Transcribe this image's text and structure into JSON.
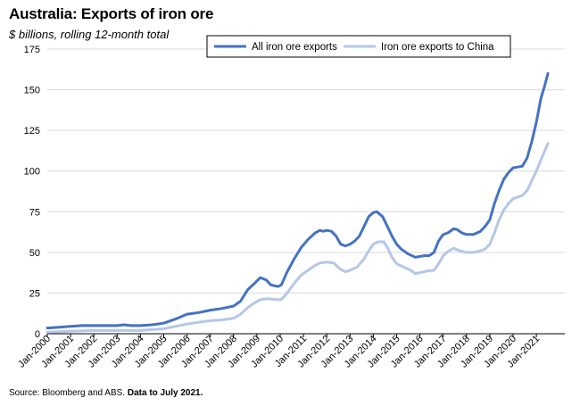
{
  "header": {
    "title": "Australia: Exports of iron ore",
    "subtitle": "$ billions, rolling 12-month total"
  },
  "footer": {
    "source": "Source: Bloomberg and ABS.",
    "note": "Data to July 2021."
  },
  "chart_data": {
    "type": "line",
    "title": "Australia: Exports of iron ore",
    "ylabel": "$ billions, rolling 12-month total",
    "xlabel": "",
    "ylim": [
      0,
      175
    ],
    "yticks": [
      0,
      25,
      50,
      75,
      100,
      125,
      150,
      175
    ],
    "xlim": [
      2000.0,
      2021.6
    ],
    "xticks": [
      {
        "value": 2000,
        "label": "Jan-2000"
      },
      {
        "value": 2001,
        "label": "Jan-2001"
      },
      {
        "value": 2002,
        "label": "Jan-2002"
      },
      {
        "value": 2003,
        "label": "Jan-2003"
      },
      {
        "value": 2004,
        "label": "Jan-2004"
      },
      {
        "value": 2005,
        "label": "Jan-2005"
      },
      {
        "value": 2006,
        "label": "Jan-2006"
      },
      {
        "value": 2007,
        "label": "Jan-2007"
      },
      {
        "value": 2008,
        "label": "Jan-2008"
      },
      {
        "value": 2009,
        "label": "Jan-2009"
      },
      {
        "value": 2010,
        "label": "Jan-2010"
      },
      {
        "value": 2011,
        "label": "Jan-2011"
      },
      {
        "value": 2012,
        "label": "Jan-2012"
      },
      {
        "value": 2013,
        "label": "Jan-2013"
      },
      {
        "value": 2014,
        "label": "Jan-2014"
      },
      {
        "value": 2015,
        "label": "Jan-2015"
      },
      {
        "value": 2016,
        "label": "Jan-2016"
      },
      {
        "value": 2017,
        "label": "Jan-2017"
      },
      {
        "value": 2018,
        "label": "Jan-2018"
      },
      {
        "value": 2019,
        "label": "Jan-2019"
      },
      {
        "value": 2020,
        "label": "Jan-2020"
      },
      {
        "value": 2021,
        "label": "Jan-2021"
      }
    ],
    "grid": "horizontal",
    "legend_position": "top-right",
    "series": [
      {
        "name": "All iron ore exports",
        "color": "#4472c4",
        "points": [
          [
            2000.0,
            3.5
          ],
          [
            2000.5,
            4.0
          ],
          [
            2001.0,
            4.5
          ],
          [
            2001.5,
            5.0
          ],
          [
            2002.0,
            5.0
          ],
          [
            2002.5,
            5.0
          ],
          [
            2003.0,
            5.0
          ],
          [
            2003.3,
            5.5
          ],
          [
            2003.6,
            5.0
          ],
          [
            2004.0,
            5.0
          ],
          [
            2004.5,
            5.5
          ],
          [
            2005.0,
            6.5
          ],
          [
            2005.5,
            9.0
          ],
          [
            2006.0,
            12.0
          ],
          [
            2006.5,
            13.0
          ],
          [
            2007.0,
            14.5
          ],
          [
            2007.5,
            15.5
          ],
          [
            2008.0,
            17.0
          ],
          [
            2008.3,
            20.0
          ],
          [
            2008.6,
            27.0
          ],
          [
            2008.9,
            31.0
          ],
          [
            2009.15,
            34.5
          ],
          [
            2009.4,
            33.0
          ],
          [
            2009.6,
            30.0
          ],
          [
            2009.9,
            29.0
          ],
          [
            2010.05,
            30.0
          ],
          [
            2010.3,
            38.0
          ],
          [
            2010.6,
            46.0
          ],
          [
            2010.9,
            53.0
          ],
          [
            2011.2,
            58.0
          ],
          [
            2011.5,
            62.0
          ],
          [
            2011.7,
            63.5
          ],
          [
            2011.85,
            63.0
          ],
          [
            2012.0,
            63.5
          ],
          [
            2012.2,
            63.0
          ],
          [
            2012.4,
            60.0
          ],
          [
            2012.6,
            55.0
          ],
          [
            2012.8,
            54.0
          ],
          [
            2013.0,
            55.0
          ],
          [
            2013.2,
            57.0
          ],
          [
            2013.4,
            60.0
          ],
          [
            2013.6,
            66.0
          ],
          [
            2013.8,
            72.0
          ],
          [
            2014.0,
            74.5
          ],
          [
            2014.15,
            75.0
          ],
          [
            2014.4,
            72.0
          ],
          [
            2014.6,
            66.0
          ],
          [
            2014.8,
            60.0
          ],
          [
            2015.0,
            55.0
          ],
          [
            2015.2,
            52.0
          ],
          [
            2015.5,
            49.0
          ],
          [
            2015.8,
            47.0
          ],
          [
            2016.0,
            47.5
          ],
          [
            2016.2,
            48.0
          ],
          [
            2016.4,
            48.0
          ],
          [
            2016.6,
            50.0
          ],
          [
            2016.8,
            57.0
          ],
          [
            2017.0,
            61.0
          ],
          [
            2017.2,
            62.0
          ],
          [
            2017.45,
            64.5
          ],
          [
            2017.6,
            64.0
          ],
          [
            2017.8,
            62.0
          ],
          [
            2018.0,
            61.0
          ],
          [
            2018.3,
            61.0
          ],
          [
            2018.6,
            63.0
          ],
          [
            2018.8,
            66.0
          ],
          [
            2019.0,
            70.0
          ],
          [
            2019.2,
            80.0
          ],
          [
            2019.4,
            88.0
          ],
          [
            2019.6,
            95.0
          ],
          [
            2019.8,
            99.0
          ],
          [
            2020.0,
            102.0
          ],
          [
            2020.2,
            102.5
          ],
          [
            2020.4,
            103.0
          ],
          [
            2020.6,
            108.0
          ],
          [
            2020.8,
            118.0
          ],
          [
            2021.0,
            130.0
          ],
          [
            2021.2,
            145.0
          ],
          [
            2021.35,
            152.0
          ],
          [
            2021.5,
            160.0
          ]
        ]
      },
      {
        "name": "Iron ore exports to China",
        "color": "#b4c7e7",
        "points": [
          [
            2000.0,
            1.0
          ],
          [
            2001.0,
            1.5
          ],
          [
            2002.0,
            2.0
          ],
          [
            2003.0,
            2.0
          ],
          [
            2004.0,
            2.0
          ],
          [
            2004.5,
            2.5
          ],
          [
            2005.0,
            3.0
          ],
          [
            2005.5,
            4.5
          ],
          [
            2006.0,
            6.0
          ],
          [
            2006.5,
            7.0
          ],
          [
            2007.0,
            8.0
          ],
          [
            2007.5,
            8.5
          ],
          [
            2008.0,
            9.5
          ],
          [
            2008.3,
            12.0
          ],
          [
            2008.6,
            16.0
          ],
          [
            2008.9,
            19.0
          ],
          [
            2009.15,
            21.0
          ],
          [
            2009.5,
            21.5
          ],
          [
            2009.8,
            21.0
          ],
          [
            2010.05,
            21.0
          ],
          [
            2010.3,
            25.0
          ],
          [
            2010.6,
            31.0
          ],
          [
            2010.9,
            36.0
          ],
          [
            2011.2,
            39.0
          ],
          [
            2011.5,
            42.0
          ],
          [
            2011.7,
            43.5
          ],
          [
            2012.0,
            44.0
          ],
          [
            2012.3,
            43.5
          ],
          [
            2012.55,
            40.0
          ],
          [
            2012.8,
            38.0
          ],
          [
            2013.0,
            39.0
          ],
          [
            2013.3,
            41.0
          ],
          [
            2013.6,
            46.0
          ],
          [
            2013.8,
            51.0
          ],
          [
            2014.0,
            55.0
          ],
          [
            2014.2,
            56.5
          ],
          [
            2014.45,
            56.5
          ],
          [
            2014.6,
            53.0
          ],
          [
            2014.8,
            47.0
          ],
          [
            2015.0,
            43.0
          ],
          [
            2015.3,
            41.0
          ],
          [
            2015.6,
            39.0
          ],
          [
            2015.8,
            37.0
          ],
          [
            2016.0,
            37.5
          ],
          [
            2016.3,
            38.5
          ],
          [
            2016.6,
            39.0
          ],
          [
            2016.8,
            43.0
          ],
          [
            2017.0,
            48.0
          ],
          [
            2017.2,
            50.5
          ],
          [
            2017.45,
            52.5
          ],
          [
            2017.7,
            51.0
          ],
          [
            2018.0,
            50.0
          ],
          [
            2018.3,
            50.0
          ],
          [
            2018.6,
            51.0
          ],
          [
            2018.8,
            52.0
          ],
          [
            2019.0,
            55.0
          ],
          [
            2019.2,
            62.0
          ],
          [
            2019.4,
            70.0
          ],
          [
            2019.6,
            76.0
          ],
          [
            2019.8,
            80.0
          ],
          [
            2020.0,
            83.0
          ],
          [
            2020.2,
            84.0
          ],
          [
            2020.4,
            85.0
          ],
          [
            2020.6,
            88.0
          ],
          [
            2020.8,
            94.0
          ],
          [
            2021.0,
            100.0
          ],
          [
            2021.2,
            107.0
          ],
          [
            2021.35,
            112.0
          ],
          [
            2021.5,
            117.0
          ]
        ]
      }
    ]
  }
}
